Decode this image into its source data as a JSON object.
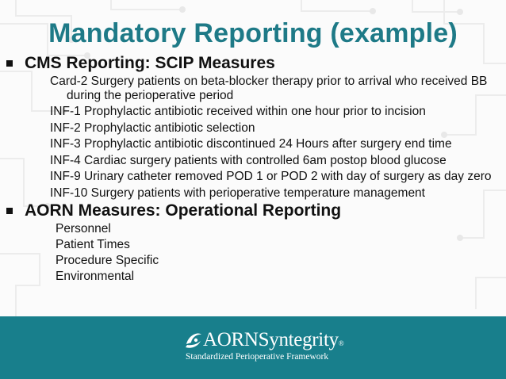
{
  "slide": {
    "title": "Mandatory Reporting (example)",
    "sections": [
      {
        "heading": "CMS Reporting: SCIP Measures",
        "items": [
          "Card-2  Surgery patients on beta-blocker therapy prior to arrival who received BB during the perioperative period",
          "INF-1   Prophylactic antibiotic received within one hour prior to incision",
          "INF-2   Prophylactic antibiotic selection",
          "INF-3  Prophylactic antibiotic discontinued 24 Hours after surgery end time",
          "INF-4  Cardiac surgery patients with controlled 6am postop blood glucose",
          "INF-9  Urinary catheter removed POD 1 or POD 2 with day of surgery as day zero",
          "INF-10  Surgery patients with perioperative temperature management"
        ]
      },
      {
        "heading": "AORN Measures: Operational Reporting",
        "items": [
          "Personnel",
          "Patient Times",
          "Procedure Specific",
          "Environmental"
        ]
      }
    ]
  },
  "footer": {
    "logo_text": "AORNSyntegrity",
    "logo_tm": "®",
    "tagline": "Standardized Perioperative Framework",
    "background_color": "#187f8c"
  },
  "colors": {
    "title": "#1e7a87",
    "text": "#111111",
    "background": "#fbfbfb"
  }
}
